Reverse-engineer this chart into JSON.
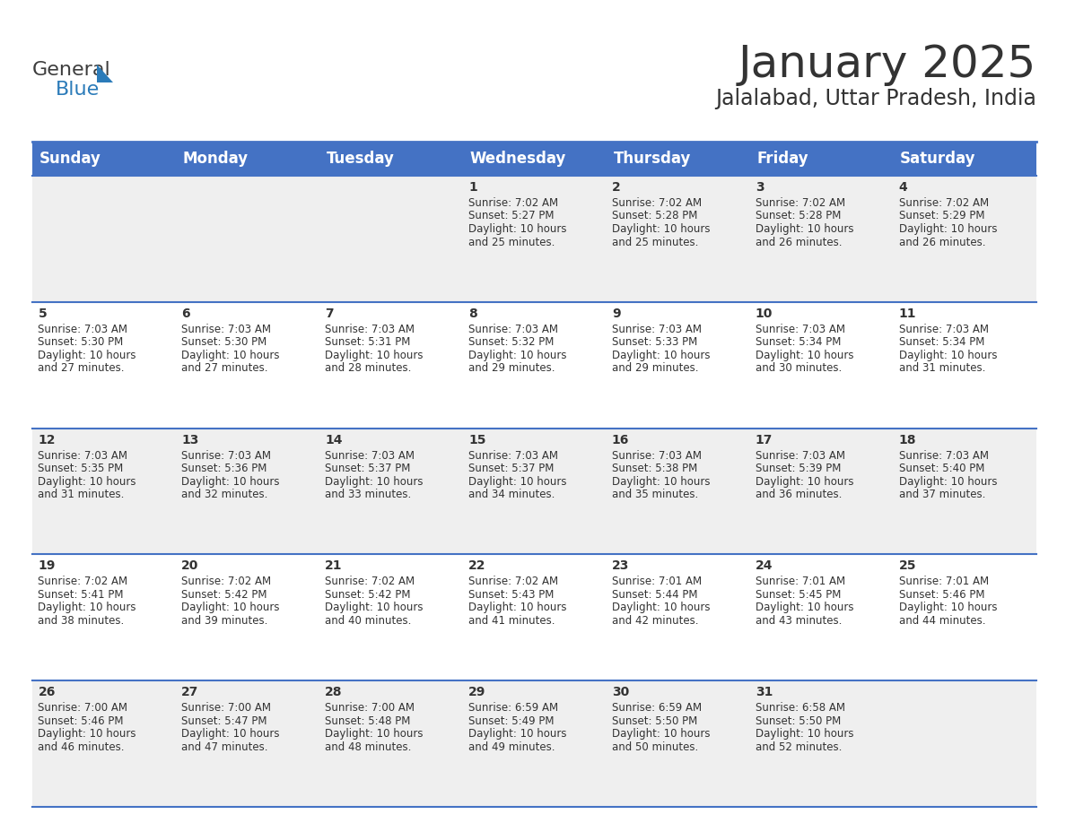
{
  "title": "January 2025",
  "subtitle": "Jalalabad, Uttar Pradesh, India",
  "header_bg": "#4472C4",
  "header_text": "#FFFFFF",
  "cell_bg_odd": "#EFEFEF",
  "cell_bg_even": "#FFFFFF",
  "row_line_color": "#4472C4",
  "text_color": "#333333",
  "days_of_week": [
    "Sunday",
    "Monday",
    "Tuesday",
    "Wednesday",
    "Thursday",
    "Friday",
    "Saturday"
  ],
  "weeks": [
    [
      {
        "day": "",
        "sunrise": "",
        "sunset": "",
        "daylight": ""
      },
      {
        "day": "",
        "sunrise": "",
        "sunset": "",
        "daylight": ""
      },
      {
        "day": "",
        "sunrise": "",
        "sunset": "",
        "daylight": ""
      },
      {
        "day": "1",
        "sunrise": "7:02 AM",
        "sunset": "5:27 PM",
        "daylight": "10 hours and 25 minutes."
      },
      {
        "day": "2",
        "sunrise": "7:02 AM",
        "sunset": "5:28 PM",
        "daylight": "10 hours and 25 minutes."
      },
      {
        "day": "3",
        "sunrise": "7:02 AM",
        "sunset": "5:28 PM",
        "daylight": "10 hours and 26 minutes."
      },
      {
        "day": "4",
        "sunrise": "7:02 AM",
        "sunset": "5:29 PM",
        "daylight": "10 hours and 26 minutes."
      }
    ],
    [
      {
        "day": "5",
        "sunrise": "7:03 AM",
        "sunset": "5:30 PM",
        "daylight": "10 hours and 27 minutes."
      },
      {
        "day": "6",
        "sunrise": "7:03 AM",
        "sunset": "5:30 PM",
        "daylight": "10 hours and 27 minutes."
      },
      {
        "day": "7",
        "sunrise": "7:03 AM",
        "sunset": "5:31 PM",
        "daylight": "10 hours and 28 minutes."
      },
      {
        "day": "8",
        "sunrise": "7:03 AM",
        "sunset": "5:32 PM",
        "daylight": "10 hours and 29 minutes."
      },
      {
        "day": "9",
        "sunrise": "7:03 AM",
        "sunset": "5:33 PM",
        "daylight": "10 hours and 29 minutes."
      },
      {
        "day": "10",
        "sunrise": "7:03 AM",
        "sunset": "5:34 PM",
        "daylight": "10 hours and 30 minutes."
      },
      {
        "day": "11",
        "sunrise": "7:03 AM",
        "sunset": "5:34 PM",
        "daylight": "10 hours and 31 minutes."
      }
    ],
    [
      {
        "day": "12",
        "sunrise": "7:03 AM",
        "sunset": "5:35 PM",
        "daylight": "10 hours and 31 minutes."
      },
      {
        "day": "13",
        "sunrise": "7:03 AM",
        "sunset": "5:36 PM",
        "daylight": "10 hours and 32 minutes."
      },
      {
        "day": "14",
        "sunrise": "7:03 AM",
        "sunset": "5:37 PM",
        "daylight": "10 hours and 33 minutes."
      },
      {
        "day": "15",
        "sunrise": "7:03 AM",
        "sunset": "5:37 PM",
        "daylight": "10 hours and 34 minutes."
      },
      {
        "day": "16",
        "sunrise": "7:03 AM",
        "sunset": "5:38 PM",
        "daylight": "10 hours and 35 minutes."
      },
      {
        "day": "17",
        "sunrise": "7:03 AM",
        "sunset": "5:39 PM",
        "daylight": "10 hours and 36 minutes."
      },
      {
        "day": "18",
        "sunrise": "7:03 AM",
        "sunset": "5:40 PM",
        "daylight": "10 hours and 37 minutes."
      }
    ],
    [
      {
        "day": "19",
        "sunrise": "7:02 AM",
        "sunset": "5:41 PM",
        "daylight": "10 hours and 38 minutes."
      },
      {
        "day": "20",
        "sunrise": "7:02 AM",
        "sunset": "5:42 PM",
        "daylight": "10 hours and 39 minutes."
      },
      {
        "day": "21",
        "sunrise": "7:02 AM",
        "sunset": "5:42 PM",
        "daylight": "10 hours and 40 minutes."
      },
      {
        "day": "22",
        "sunrise": "7:02 AM",
        "sunset": "5:43 PM",
        "daylight": "10 hours and 41 minutes."
      },
      {
        "day": "23",
        "sunrise": "7:01 AM",
        "sunset": "5:44 PM",
        "daylight": "10 hours and 42 minutes."
      },
      {
        "day": "24",
        "sunrise": "7:01 AM",
        "sunset": "5:45 PM",
        "daylight": "10 hours and 43 minutes."
      },
      {
        "day": "25",
        "sunrise": "7:01 AM",
        "sunset": "5:46 PM",
        "daylight": "10 hours and 44 minutes."
      }
    ],
    [
      {
        "day": "26",
        "sunrise": "7:00 AM",
        "sunset": "5:46 PM",
        "daylight": "10 hours and 46 minutes."
      },
      {
        "day": "27",
        "sunrise": "7:00 AM",
        "sunset": "5:47 PM",
        "daylight": "10 hours and 47 minutes."
      },
      {
        "day": "28",
        "sunrise": "7:00 AM",
        "sunset": "5:48 PM",
        "daylight": "10 hours and 48 minutes."
      },
      {
        "day": "29",
        "sunrise": "6:59 AM",
        "sunset": "5:49 PM",
        "daylight": "10 hours and 49 minutes."
      },
      {
        "day": "30",
        "sunrise": "6:59 AM",
        "sunset": "5:50 PM",
        "daylight": "10 hours and 50 minutes."
      },
      {
        "day": "31",
        "sunrise": "6:58 AM",
        "sunset": "5:50 PM",
        "daylight": "10 hours and 52 minutes."
      },
      {
        "day": "",
        "sunrise": "",
        "sunset": "",
        "daylight": ""
      }
    ]
  ],
  "logo_general_color": "#3d3d3d",
  "logo_blue_color": "#2B7BB9",
  "logo_triangle_color": "#2B7BB9",
  "title_fontsize": 36,
  "subtitle_fontsize": 17,
  "header_fontsize": 12,
  "day_num_fontsize": 10,
  "cell_text_fontsize": 8.5
}
